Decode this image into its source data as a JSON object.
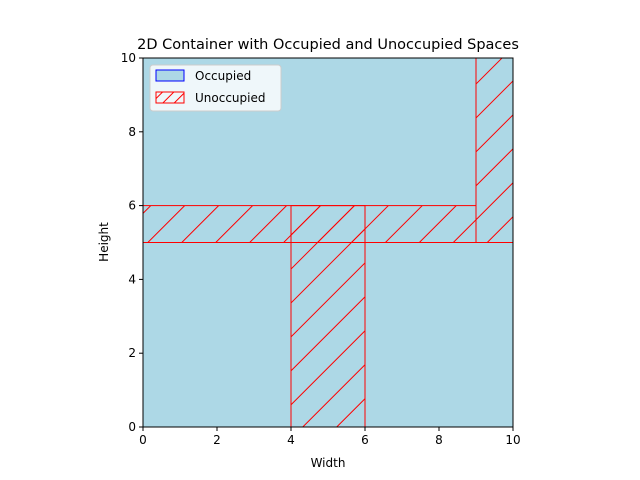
{
  "chart_data": {
    "type": "area",
    "title": "2D Container with Occupied and Unoccupied Spaces",
    "xlabel": "Width",
    "ylabel": "Height",
    "xlim": [
      0,
      10
    ],
    "ylim": [
      0,
      10
    ],
    "xticks": [
      "0",
      "2",
      "4",
      "6",
      "8",
      "10"
    ],
    "yticks": [
      "0",
      "2",
      "4",
      "6",
      "8",
      "10"
    ],
    "grid": false,
    "legend": {
      "placement": "top-left",
      "entries": [
        {
          "key": "occupied",
          "label": "Occupied"
        },
        {
          "key": "unoccupied",
          "label": "Unoccupied"
        }
      ]
    },
    "styles": {
      "occupied": {
        "fill": "#add8e6",
        "edge": "#0000ff"
      },
      "unoccupied": {
        "fill": "#ffffff",
        "edge": "#ff0000",
        "hatch": "/"
      }
    },
    "occupied_regions": [
      {
        "x": 0,
        "y": 0,
        "width": 10,
        "height": 10
      }
    ],
    "unoccupied_regions": [
      {
        "x": 0,
        "y": 5,
        "width": 9,
        "height": 1
      },
      {
        "x": 4,
        "y": 0,
        "width": 2,
        "height": 6
      },
      {
        "x": 9,
        "y": 5,
        "width": 1,
        "height": 5
      }
    ]
  }
}
